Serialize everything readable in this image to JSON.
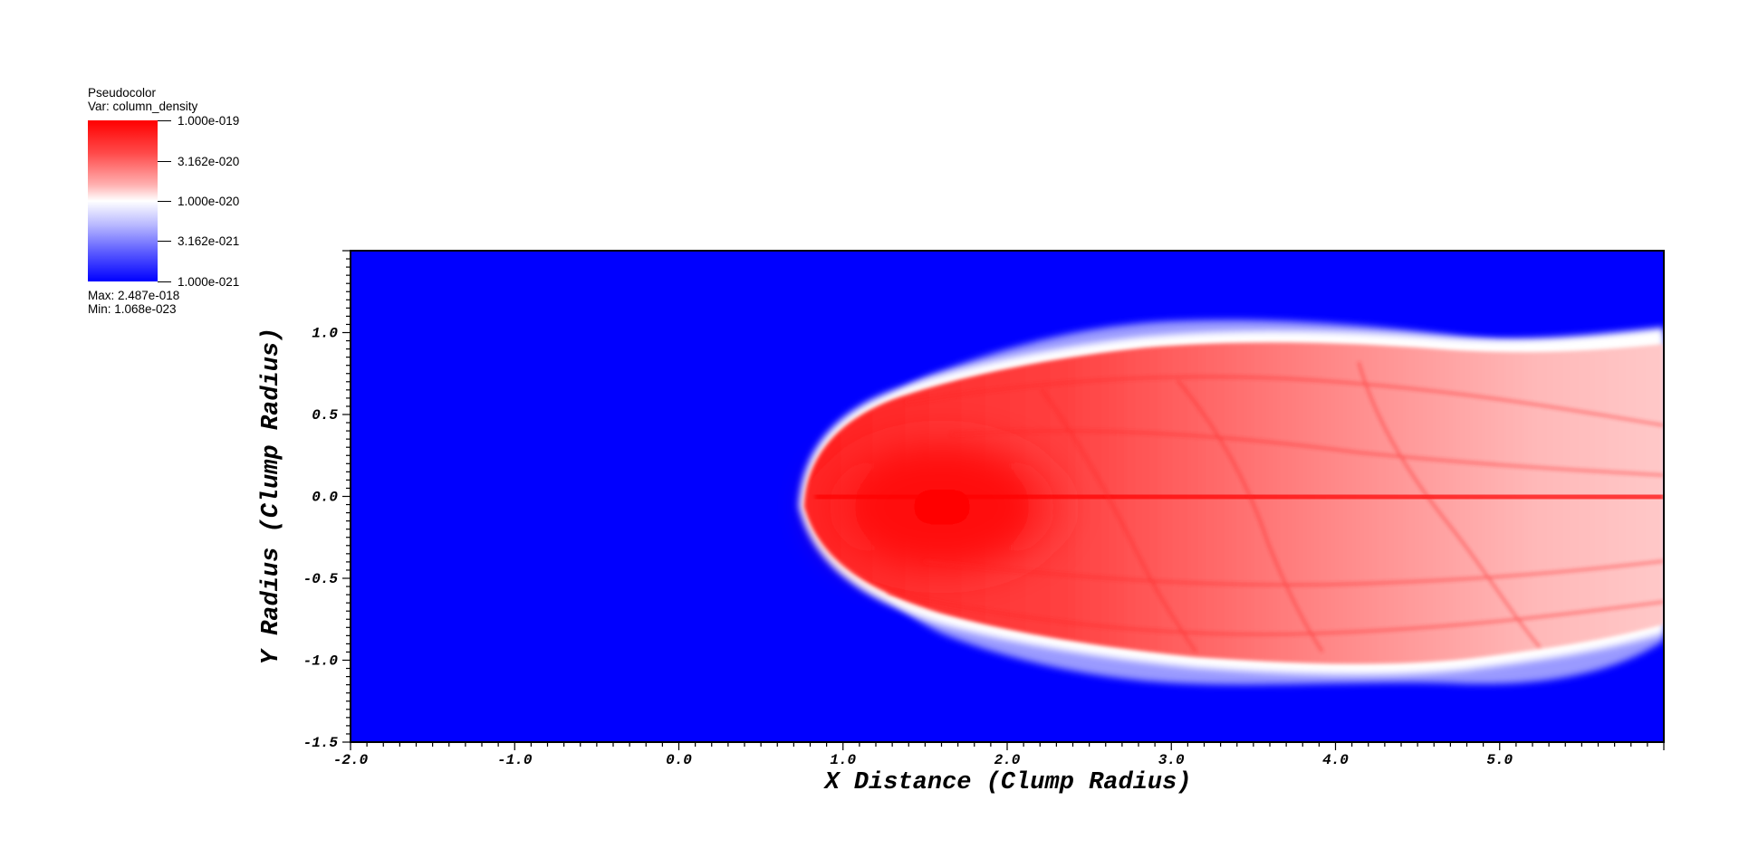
{
  "legend": {
    "title": "Pseudocolor",
    "var_label": "Var: column_density",
    "max_label": "Max:  2.487e-018",
    "min_label": "Min:  1.068e-023",
    "ticks": [
      "1.000e-019",
      "3.162e-020",
      "1.000e-020",
      "3.162e-021",
      "1.000e-021"
    ],
    "colors": [
      "#ff0000",
      "#ffffff",
      "#0000ff"
    ]
  },
  "chart_data": {
    "type": "heatmap",
    "variable": "column_density",
    "colormap": "blue-white-red",
    "log_scale": true,
    "color_range": [
      1e-21,
      1e-19
    ],
    "data_max": 2.487e-18,
    "data_min": 1.068e-23,
    "xlabel": "X Distance (Clump Radius)",
    "ylabel": "Y Radius (Clump Radius)",
    "xlim": [
      -2.0,
      6.0
    ],
    "ylim": [
      -1.5,
      1.5
    ],
    "x_tick_labels": [
      "-2.0",
      "-1.0",
      "0.0",
      "1.0",
      "2.0",
      "3.0",
      "4.0",
      "5.0"
    ],
    "y_tick_labels": [
      "-1.5",
      "-1.0",
      "-0.5",
      "0.0",
      "0.5",
      "1.0"
    ]
  }
}
